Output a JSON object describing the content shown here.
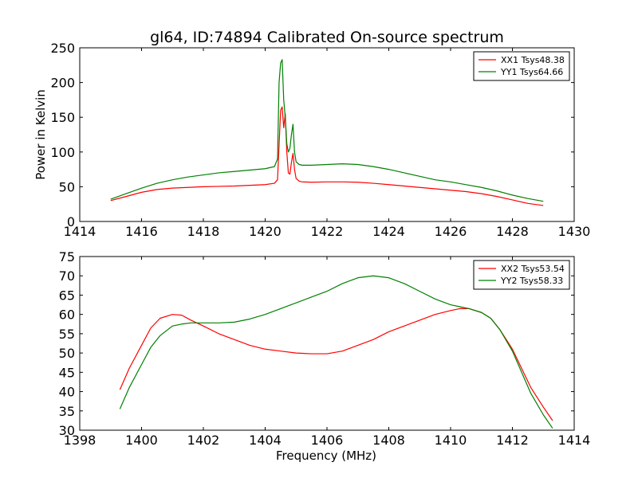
{
  "figure": {
    "title": "gl64, ID:74894 Calibrated On-source spectrum"
  },
  "chart_data": [
    {
      "type": "line",
      "xlabel": "",
      "ylabel": "Power in Kelvin",
      "xlim": [
        1414,
        1430
      ],
      "ylim": [
        0,
        250
      ],
      "xticks": [
        1414,
        1416,
        1418,
        1420,
        1422,
        1424,
        1426,
        1428,
        1430
      ],
      "yticks": [
        0,
        50,
        100,
        150,
        200,
        250
      ],
      "legend": "top-right",
      "grid": false,
      "series": [
        {
          "name": "XX1 Tsys48.38",
          "color": "#ff0000",
          "x": [
            1415.0,
            1415.5,
            1416.0,
            1416.5,
            1417.0,
            1417.5,
            1418.0,
            1418.5,
            1419.0,
            1419.5,
            1420.0,
            1420.3,
            1420.4,
            1420.45,
            1420.5,
            1420.55,
            1420.6,
            1420.65,
            1420.7,
            1420.75,
            1420.8,
            1420.85,
            1420.9,
            1420.95,
            1421.0,
            1421.1,
            1421.2,
            1421.5,
            1422.0,
            1422.5,
            1423.0,
            1423.5,
            1424.0,
            1424.5,
            1425.0,
            1425.5,
            1426.0,
            1426.5,
            1427.0,
            1427.5,
            1428.0,
            1428.5,
            1429.0
          ],
          "y": [
            30,
            36,
            42,
            46,
            48,
            49,
            50,
            50.5,
            51,
            52,
            53,
            55,
            60,
            110,
            160,
            165,
            135,
            155,
            100,
            70,
            68,
            85,
            98,
            75,
            62,
            58,
            57,
            56.5,
            57,
            57,
            56.5,
            55,
            53,
            51,
            49,
            47,
            45,
            43,
            40,
            36,
            31,
            26,
            23
          ]
        },
        {
          "name": "YY1 Tsys64.66",
          "color": "#008000",
          "x": [
            1415.0,
            1415.5,
            1416.0,
            1416.5,
            1417.0,
            1417.5,
            1418.0,
            1418.5,
            1419.0,
            1419.5,
            1420.0,
            1420.3,
            1420.4,
            1420.45,
            1420.5,
            1420.55,
            1420.6,
            1420.65,
            1420.7,
            1420.75,
            1420.8,
            1420.85,
            1420.9,
            1420.95,
            1421.0,
            1421.1,
            1421.2,
            1421.5,
            1422.0,
            1422.5,
            1423.0,
            1423.5,
            1424.0,
            1424.5,
            1425.0,
            1425.5,
            1426.0,
            1426.5,
            1427.0,
            1427.5,
            1428.0,
            1428.5,
            1429.0
          ],
          "y": [
            32,
            40,
            48,
            55,
            60,
            64,
            67,
            70,
            72,
            74,
            76,
            79,
            90,
            200,
            228,
            233,
            175,
            150,
            112,
            100,
            105,
            125,
            140,
            100,
            86,
            82,
            81,
            81,
            82,
            83,
            82,
            79,
            75,
            70,
            65,
            60,
            57,
            53,
            49,
            44,
            38,
            33,
            29
          ]
        }
      ]
    },
    {
      "type": "line",
      "xlabel": "Frequency (MHz)",
      "ylabel": "",
      "xlim": [
        1398,
        1414
      ],
      "ylim": [
        30,
        75
      ],
      "xticks": [
        1398,
        1400,
        1402,
        1404,
        1406,
        1408,
        1410,
        1412,
        1414
      ],
      "yticks": [
        30,
        35,
        40,
        45,
        50,
        55,
        60,
        65,
        70,
        75
      ],
      "legend": "top-right",
      "grid": false,
      "series": [
        {
          "name": "XX2 Tsys53.54",
          "color": "#ff0000",
          "x": [
            1399.3,
            1399.6,
            1400.0,
            1400.3,
            1400.6,
            1401.0,
            1401.3,
            1401.6,
            1402.0,
            1402.5,
            1403.0,
            1403.5,
            1404.0,
            1404.5,
            1405.0,
            1405.5,
            1406.0,
            1406.5,
            1407.0,
            1407.5,
            1408.0,
            1408.5,
            1409.0,
            1409.5,
            1410.0,
            1410.3,
            1410.6,
            1411.0,
            1411.3,
            1411.6,
            1412.0,
            1412.3,
            1412.6,
            1413.0,
            1413.3
          ],
          "y": [
            40.5,
            46,
            52,
            56.5,
            59,
            60,
            59.8,
            58.5,
            57,
            55,
            53.5,
            52,
            51,
            50.5,
            50,
            49.8,
            49.8,
            50.5,
            52,
            53.5,
            55.5,
            57,
            58.5,
            60,
            61,
            61.5,
            61.5,
            60.5,
            59,
            56,
            51,
            46,
            41,
            36,
            32.5
          ]
        },
        {
          "name": "YY2 Tsys58.33",
          "color": "#008000",
          "x": [
            1399.3,
            1399.6,
            1400.0,
            1400.3,
            1400.6,
            1401.0,
            1401.3,
            1401.6,
            1402.0,
            1402.5,
            1403.0,
            1403.5,
            1404.0,
            1404.5,
            1405.0,
            1405.5,
            1406.0,
            1406.5,
            1407.0,
            1407.5,
            1408.0,
            1408.5,
            1409.0,
            1409.5,
            1410.0,
            1410.3,
            1410.6,
            1411.0,
            1411.3,
            1411.6,
            1412.0,
            1412.3,
            1412.6,
            1413.0,
            1413.3
          ],
          "y": [
            35.5,
            41,
            47,
            51.5,
            54.5,
            57,
            57.5,
            57.8,
            57.8,
            57.8,
            58,
            58.8,
            60,
            61.5,
            63,
            64.5,
            66,
            68,
            69.5,
            70,
            69.5,
            68,
            66,
            64,
            62.5,
            62,
            61.5,
            60.5,
            59,
            56,
            50.5,
            45,
            39.5,
            34,
            30.5
          ]
        }
      ]
    }
  ]
}
